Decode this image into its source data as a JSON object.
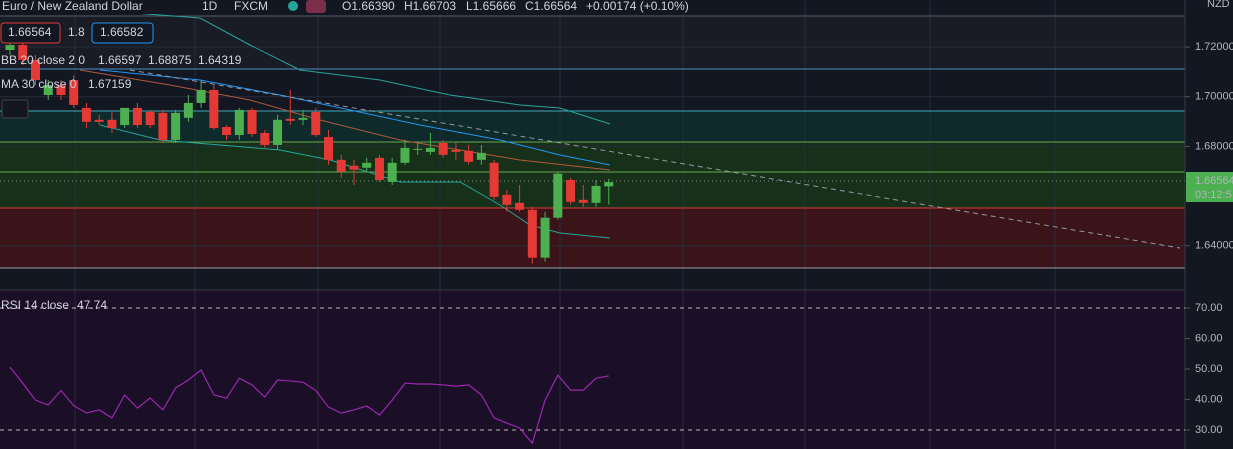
{
  "header": {
    "symbol": "Euro / New Zealand Dollar",
    "interval": "1D",
    "source": "FXCM",
    "ohlc_labels": [
      "O1.66390",
      "H1.66703",
      "L1.65666",
      "C1.66564",
      "+0.00174 (+0.10%)"
    ],
    "sell": "1.66564",
    "spread": "1.8",
    "buy": "1.66582",
    "bb_label": "BB 20 close 2 0",
    "bb_values": [
      "1.66597",
      "1.68875",
      "1.64319"
    ],
    "ma_label": "MA 30 close 0",
    "ma_value": "1.67159",
    "currency": "NZD",
    "price_label": "1.66564",
    "countdown": "03:12:5"
  },
  "chart_data": [
    {
      "type": "candlestick",
      "up_color": "#4caf50",
      "down_color": "#e53935",
      "grid": true,
      "ylim": [
        1.6222,
        1.7329
      ],
      "yticks": [
        {
          "value": 1.72,
          "label": "1.72000"
        },
        {
          "value": 1.7,
          "label": "1.70000"
        },
        {
          "value": 1.68,
          "label": "1.68000"
        },
        {
          "value": 1.64,
          "label": "1.64000"
        }
      ],
      "open": [
        1.7188,
        1.7208,
        1.7148,
        1.7007,
        1.7047,
        1.7067,
        1.6955,
        1.6907,
        1.6907,
        1.6886,
        1.6955,
        1.6939,
        1.6935,
        1.6826,
        1.6915,
        1.6975,
        1.7027,
        1.6878,
        1.6846,
        1.6947,
        1.6854,
        1.6806,
        1.6911,
        1.6907,
        1.6939,
        1.6838,
        1.6746,
        1.6722,
        1.6714,
        1.6754,
        1.6657,
        1.6734,
        1.6786,
        1.6778,
        1.6814,
        1.6786,
        1.6782,
        1.6746,
        1.6734,
        1.6605,
        1.6573,
        1.6545,
        1.6352,
        1.6513,
        1.6665,
        1.6585,
        1.6573,
        1.6639
      ],
      "high": [
        1.7228,
        1.7228,
        1.7168,
        1.7067,
        1.7067,
        1.7087,
        1.6975,
        1.6927,
        1.6939,
        1.6955,
        1.6975,
        1.6947,
        1.6947,
        1.6947,
        1.7007,
        1.7067,
        1.7047,
        1.6886,
        1.6955,
        1.6955,
        1.6866,
        1.6927,
        1.7027,
        1.6947,
        1.6955,
        1.6866,
        1.6766,
        1.6746,
        1.6754,
        1.6766,
        1.6754,
        1.6826,
        1.6814,
        1.6854,
        1.6826,
        1.6814,
        1.6806,
        1.6806,
        1.6746,
        1.6625,
        1.6645,
        1.6557,
        1.6537,
        1.6698,
        1.6673,
        1.6645,
        1.6665,
        1.66703
      ],
      "low": [
        1.7168,
        1.7128,
        1.7047,
        1.6987,
        1.6987,
        1.6955,
        1.6874,
        1.6886,
        1.6854,
        1.6874,
        1.6874,
        1.6874,
        1.6814,
        1.6814,
        1.6899,
        1.6955,
        1.6866,
        1.6826,
        1.6826,
        1.6838,
        1.6794,
        1.6786,
        1.6886,
        1.6886,
        1.6838,
        1.6726,
        1.6673,
        1.6645,
        1.6698,
        1.6657,
        1.6645,
        1.6726,
        1.6766,
        1.6766,
        1.6754,
        1.6746,
        1.6726,
        1.6726,
        1.6585,
        1.6537,
        1.6537,
        1.6328,
        1.6336,
        1.6505,
        1.6565,
        1.6557,
        1.6557,
        1.65666
      ],
      "close": [
        1.7208,
        1.7148,
        1.7067,
        1.7047,
        1.7007,
        1.6967,
        1.6899,
        1.6899,
        1.6874,
        1.6955,
        1.6886,
        1.6886,
        1.6826,
        1.6935,
        1.6975,
        1.7027,
        1.6874,
        1.6846,
        1.6947,
        1.685,
        1.6806,
        1.6907,
        1.6903,
        1.6915,
        1.6846,
        1.6746,
        1.6698,
        1.6706,
        1.6734,
        1.6665,
        1.6734,
        1.6794,
        1.679,
        1.6794,
        1.6766,
        1.6778,
        1.6738,
        1.6774,
        1.6597,
        1.6565,
        1.6545,
        1.6352,
        1.6513,
        1.669,
        1.6577,
        1.6573,
        1.6641,
        1.66564
      ]
    },
    {
      "type": "line",
      "label": "RSI 14 close",
      "value_label": "47.74",
      "color": "#9c27b0",
      "ylim": [
        23.8,
        75.9
      ],
      "yticks": [
        {
          "value": 70,
          "label": "70.00"
        },
        {
          "value": 60,
          "label": "60.00"
        },
        {
          "value": 50,
          "label": "50.00"
        },
        {
          "value": 40,
          "label": "40.00"
        },
        {
          "value": 30,
          "label": "30.00"
        }
      ],
      "values": [
        50.6,
        45.4,
        39.8,
        38.2,
        43,
        38,
        35.6,
        36.6,
        34,
        41.5,
        37.2,
        40.5,
        36.6,
        43.8,
        46.4,
        49.7,
        41.5,
        40.5,
        47,
        44.8,
        40.8,
        46.4,
        46.1,
        45.7,
        43,
        37.5,
        35.6,
        36.6,
        37.9,
        34.9,
        39.8,
        45.4,
        45.1,
        45.1,
        44.8,
        44.4,
        44.8,
        41.5,
        34,
        32.3,
        30.7,
        25.7,
        39.8,
        48,
        43.1,
        43.1,
        47,
        47.74
      ]
    }
  ]
}
